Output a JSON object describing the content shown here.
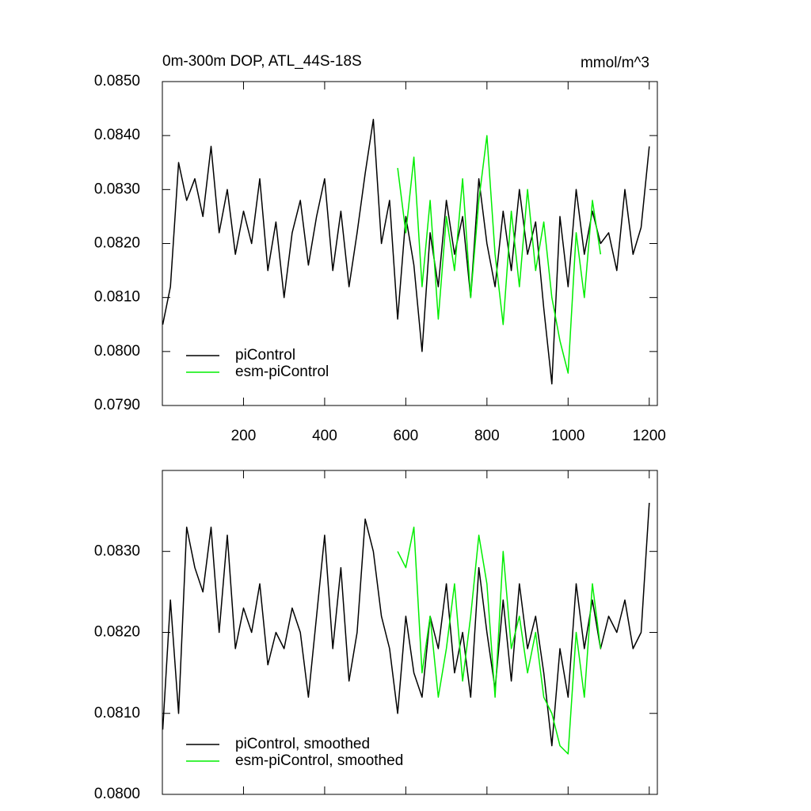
{
  "chart_data": [
    {
      "type": "line",
      "title": "0m-300m DOP, ATL_44S-18S",
      "units": "mmol/m^3",
      "xlim": [
        0,
        1220
      ],
      "xticks": [
        200,
        400,
        600,
        800,
        1000,
        1200
      ],
      "ylim": [
        0.079,
        0.085
      ],
      "yticks": [
        {
          "value": 0.079,
          "label": "0.0790"
        },
        {
          "value": 0.08,
          "label": "0.0800"
        },
        {
          "value": 0.081,
          "label": "0.0810"
        },
        {
          "value": 0.082,
          "label": "0.0820"
        },
        {
          "value": 0.083,
          "label": "0.0830"
        },
        {
          "value": 0.084,
          "label": "0.0840"
        },
        {
          "value": 0.085,
          "label": "0.0850"
        }
      ],
      "legend": "lower left",
      "series": [
        {
          "name": "piControl",
          "color": "#000000",
          "x": [
            1,
            20,
            40,
            60,
            80,
            100,
            120,
            140,
            160,
            180,
            200,
            220,
            240,
            260,
            280,
            300,
            320,
            340,
            360,
            380,
            400,
            420,
            440,
            460,
            480,
            500,
            520,
            540,
            560,
            580,
            600,
            620,
            640,
            660,
            680,
            700,
            720,
            740,
            760,
            780,
            800,
            820,
            840,
            860,
            880,
            900,
            920,
            940,
            960,
            980,
            1000,
            1020,
            1040,
            1060,
            1080,
            1100,
            1120,
            1140,
            1160,
            1180,
            1200
          ],
          "values": [
            0.0805,
            0.0812,
            0.0835,
            0.0828,
            0.0832,
            0.0825,
            0.0838,
            0.0822,
            0.083,
            0.0818,
            0.0826,
            0.082,
            0.0832,
            0.0815,
            0.0824,
            0.081,
            0.0822,
            0.0828,
            0.0816,
            0.0825,
            0.0832,
            0.0815,
            0.0826,
            0.0812,
            0.0822,
            0.0833,
            0.0843,
            0.082,
            0.0828,
            0.0806,
            0.0825,
            0.0816,
            0.08,
            0.0822,
            0.0812,
            0.0828,
            0.0818,
            0.0825,
            0.081,
            0.0832,
            0.082,
            0.0812,
            0.0826,
            0.0815,
            0.083,
            0.0818,
            0.0824,
            0.0808,
            0.0794,
            0.0825,
            0.0812,
            0.083,
            0.0818,
            0.0826,
            0.082,
            0.0822,
            0.0815,
            0.083,
            0.0818,
            0.0823,
            0.0838
          ]
        },
        {
          "name": "esm-piControl",
          "color": "#00ee00",
          "x": [
            580,
            600,
            620,
            640,
            660,
            680,
            700,
            720,
            740,
            760,
            780,
            800,
            820,
            840,
            860,
            880,
            900,
            920,
            940,
            960,
            980,
            1000,
            1020,
            1040,
            1060,
            1080
          ],
          "values": [
            0.0834,
            0.0822,
            0.0836,
            0.0812,
            0.0828,
            0.0806,
            0.0825,
            0.0815,
            0.0832,
            0.081,
            0.0828,
            0.084,
            0.0818,
            0.0805,
            0.0826,
            0.0812,
            0.083,
            0.0815,
            0.0824,
            0.081,
            0.0802,
            0.0796,
            0.0822,
            0.081,
            0.0828,
            0.0818
          ]
        }
      ]
    },
    {
      "type": "line",
      "xlim": [
        0,
        1220
      ],
      "xticks": [
        200,
        400,
        600,
        800,
        1000,
        1200
      ],
      "ylim": [
        0.08,
        0.084
      ],
      "yticks": [
        {
          "value": 0.08,
          "label": "0.0800"
        },
        {
          "value": 0.081,
          "label": "0.0810"
        },
        {
          "value": 0.082,
          "label": "0.0820"
        },
        {
          "value": 0.083,
          "label": "0.0830"
        }
      ],
      "legend": "lower left",
      "series": [
        {
          "name": "piControl, smoothed",
          "color": "#000000",
          "x": [
            1,
            20,
            40,
            60,
            80,
            100,
            120,
            140,
            160,
            180,
            200,
            220,
            240,
            260,
            280,
            300,
            320,
            340,
            360,
            380,
            400,
            420,
            440,
            460,
            480,
            500,
            520,
            540,
            560,
            580,
            600,
            620,
            640,
            660,
            680,
            700,
            720,
            740,
            760,
            780,
            800,
            820,
            840,
            860,
            880,
            900,
            920,
            940,
            960,
            980,
            1000,
            1020,
            1040,
            1060,
            1080,
            1100,
            1120,
            1140,
            1160,
            1180,
            1200
          ],
          "values": [
            0.0808,
            0.0824,
            0.081,
            0.0833,
            0.0828,
            0.0825,
            0.0833,
            0.082,
            0.0832,
            0.0818,
            0.0823,
            0.082,
            0.0826,
            0.0816,
            0.082,
            0.0818,
            0.0823,
            0.082,
            0.0812,
            0.0822,
            0.0832,
            0.0818,
            0.0828,
            0.0814,
            0.082,
            0.0834,
            0.083,
            0.0822,
            0.0818,
            0.081,
            0.0822,
            0.0815,
            0.0812,
            0.0822,
            0.0818,
            0.0826,
            0.0815,
            0.082,
            0.0812,
            0.0828,
            0.082,
            0.0813,
            0.0824,
            0.0814,
            0.0826,
            0.0818,
            0.0822,
            0.0815,
            0.0806,
            0.0818,
            0.0812,
            0.0826,
            0.0818,
            0.0824,
            0.0818,
            0.0822,
            0.082,
            0.0824,
            0.0818,
            0.082,
            0.0836
          ]
        },
        {
          "name": "esm-piControl, smoothed",
          "color": "#00ee00",
          "x": [
            580,
            600,
            620,
            640,
            660,
            680,
            700,
            720,
            740,
            760,
            780,
            800,
            820,
            840,
            860,
            880,
            900,
            920,
            940,
            960,
            980,
            1000,
            1020,
            1040,
            1060,
            1080
          ],
          "values": [
            0.083,
            0.0828,
            0.0833,
            0.0815,
            0.0822,
            0.0812,
            0.0818,
            0.0826,
            0.0814,
            0.0822,
            0.0832,
            0.0826,
            0.0812,
            0.083,
            0.0818,
            0.0822,
            0.0815,
            0.082,
            0.0812,
            0.081,
            0.0806,
            0.0805,
            0.082,
            0.0812,
            0.0826,
            0.0818
          ]
        }
      ]
    }
  ]
}
